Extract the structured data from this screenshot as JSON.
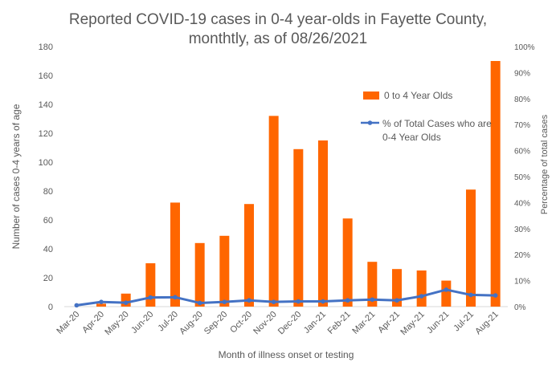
{
  "chart_data": {
    "type": "bar+line",
    "title_lines": [
      "Reported COVID-19 cases in 0-4 year-olds in Fayette County,",
      "monthtly, as of 08/26/2021"
    ],
    "xlabel": "Month of illness onset or testing",
    "ylabel": "Number of cases 0-4 years of age",
    "y2label": "Percentage of total cases",
    "categories": [
      "Mar-20",
      "Apr-20",
      "May-20",
      "Jun-20",
      "Jul-20",
      "Aug-20",
      "Sep-20",
      "Oct-20",
      "Nov-20",
      "Dec-20",
      "Jan-21",
      "Feb-21",
      "Mar-21",
      "Apr-21",
      "May-21",
      "Jun-21",
      "Jul-21",
      "Aug-21"
    ],
    "ylim": [
      0,
      180
    ],
    "yticks": [
      "0",
      "20",
      "40",
      "60",
      "80",
      "100",
      "120",
      "140",
      "160",
      "180"
    ],
    "y2lim": [
      0,
      100
    ],
    "y2ticks": [
      "0%",
      "10%",
      "20%",
      "30%",
      "40%",
      "50%",
      "60%",
      "70%",
      "80%",
      "90%",
      "100%"
    ],
    "series": [
      {
        "name": "0 to 4 Year Olds",
        "type": "bar",
        "color": "#ff6600",
        "values": [
          0,
          2,
          9,
          30,
          72,
          44,
          49,
          71,
          132,
          109,
          115,
          61,
          31,
          26,
          25,
          18,
          81,
          170
        ]
      },
      {
        "name_lines": [
          "% of Total Cases who are",
          "0-4 Year Olds"
        ],
        "type": "line",
        "axis": "right",
        "color": "#4472c4",
        "values": [
          0.5,
          1.8,
          1.5,
          3.5,
          3.6,
          1.4,
          1.8,
          2.4,
          1.8,
          2.0,
          2.0,
          2.4,
          2.7,
          2.4,
          4.0,
          6.5,
          4.5,
          4.3
        ]
      }
    ],
    "legend_position": "right, inside plot area",
    "grid": false
  }
}
